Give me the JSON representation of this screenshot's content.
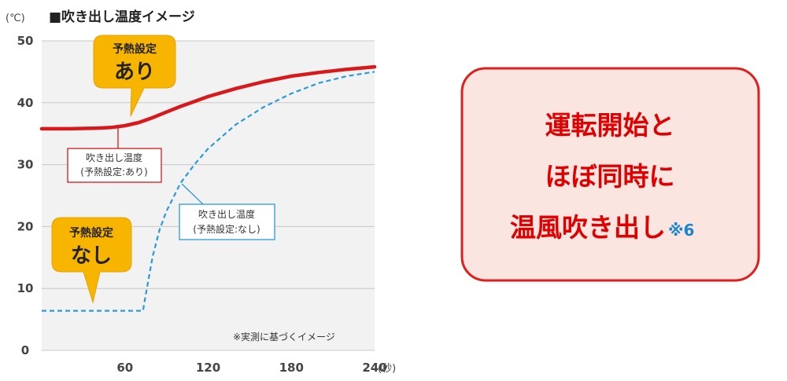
{
  "chart_data": {
    "type": "line",
    "title": "■吹き出し温度イメージ",
    "ylabel": "(℃)",
    "xlabel": "(秒)",
    "xlim": [
      0,
      240
    ],
    "ylim": [
      0,
      50
    ],
    "xticks": [
      60,
      120,
      180,
      240
    ],
    "yticks": [
      0,
      10,
      20,
      30,
      40,
      50
    ],
    "grid": true,
    "note": "※実測に基づくイメージ",
    "series": [
      {
        "name": "吹き出し温度\n(予熱設定:あり)",
        "name_line1": "吹き出し温度",
        "name_line2": "(予熱設定:あり)",
        "color": "#d7191c",
        "style": "solid",
        "x": [
          0,
          20,
          40,
          50,
          60,
          70,
          80,
          90,
          100,
          110,
          120,
          140,
          160,
          180,
          200,
          220,
          240
        ],
        "y": [
          35.8,
          35.8,
          35.9,
          36.0,
          36.3,
          36.8,
          37.6,
          38.5,
          39.4,
          40.2,
          41.0,
          42.3,
          43.4,
          44.3,
          44.9,
          45.4,
          45.8
        ]
      },
      {
        "name": "吹き出し温度\n(予熱設定:なし)",
        "name_line1": "吹き出し温度",
        "name_line2": "(予熱設定:なし)",
        "color": "#2a9bd6",
        "style": "dashed",
        "x": [
          0,
          30,
          60,
          73,
          75,
          80,
          85,
          90,
          100,
          110,
          120,
          140,
          160,
          180,
          200,
          220,
          240
        ],
        "y": [
          6.4,
          6.4,
          6.4,
          6.4,
          9.0,
          15.2,
          19.5,
          22.5,
          27.0,
          30.0,
          32.6,
          36.5,
          39.3,
          41.5,
          43.2,
          44.3,
          45.0
        ]
      }
    ],
    "callouts": [
      {
        "small": "予熱設定",
        "big": "あり",
        "color": "#f8b500"
      },
      {
        "small": "予熱設定",
        "big": "なし",
        "color": "#f8b500"
      }
    ]
  },
  "panel": {
    "line1": "運転開始と",
    "line2": "ほぼ同時に",
    "line3": "温風吹き出し",
    "footnote": "※6",
    "background": "#fbe5e1",
    "border": "#e01e1e"
  }
}
